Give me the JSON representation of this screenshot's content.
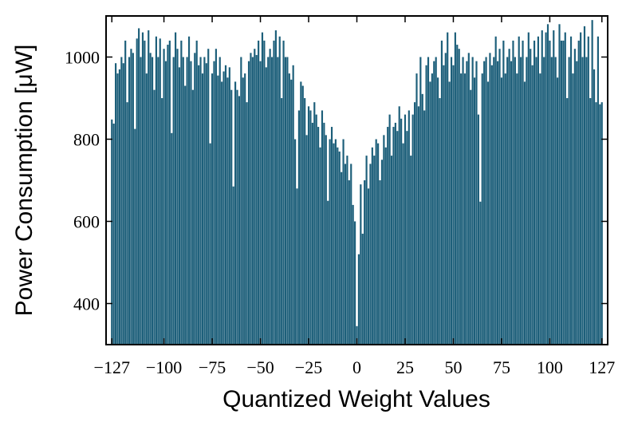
{
  "chart_data": {
    "type": "bar",
    "xlabel": "Quantized Weight Values",
    "ylabel": "Power Consumption [μW]",
    "color": "#1d5f7a",
    "xlim": [
      -130,
      130
    ],
    "ylim": [
      300,
      1100
    ],
    "xticks": [
      {
        "value": -127,
        "label": "−127"
      },
      {
        "value": -100,
        "label": "−100"
      },
      {
        "value": -75,
        "label": "−75"
      },
      {
        "value": -50,
        "label": "−50"
      },
      {
        "value": -25,
        "label": "−25"
      },
      0,
      25,
      50,
      75,
      100,
      127
    ],
    "yticks": [
      400,
      600,
      800,
      1000
    ],
    "x": [
      -127,
      -126,
      -125,
      -124,
      -123,
      -122,
      -121,
      -120,
      -119,
      -118,
      -117,
      -116,
      -115,
      -114,
      -113,
      -112,
      -111,
      -110,
      -109,
      -108,
      -107,
      -106,
      -105,
      -104,
      -103,
      -102,
      -101,
      -100,
      -99,
      -98,
      -97,
      -96,
      -95,
      -94,
      -93,
      -92,
      -91,
      -90,
      -89,
      -88,
      -87,
      -86,
      -85,
      -84,
      -83,
      -82,
      -81,
      -80,
      -79,
      -78,
      -77,
      -76,
      -75,
      -74,
      -73,
      -72,
      -71,
      -70,
      -69,
      -68,
      -67,
      -66,
      -65,
      -64,
      -63,
      -62,
      -61,
      -60,
      -59,
      -58,
      -57,
      -56,
      -55,
      -54,
      -53,
      -52,
      -51,
      -50,
      -49,
      -48,
      -47,
      -46,
      -45,
      -44,
      -43,
      -42,
      -41,
      -40,
      -39,
      -38,
      -37,
      -36,
      -35,
      -34,
      -33,
      -32,
      -31,
      -30,
      -29,
      -28,
      -27,
      -26,
      -25,
      -24,
      -23,
      -22,
      -21,
      -20,
      -19,
      -18,
      -17,
      -16,
      -15,
      -14,
      -13,
      -12,
      -11,
      -10,
      -9,
      -8,
      -7,
      -6,
      -5,
      -4,
      -3,
      -2,
      -1,
      0,
      1,
      2,
      3,
      4,
      5,
      6,
      7,
      8,
      9,
      10,
      11,
      12,
      13,
      14,
      15,
      16,
      17,
      18,
      19,
      20,
      21,
      22,
      23,
      24,
      25,
      26,
      27,
      28,
      29,
      30,
      31,
      32,
      33,
      34,
      35,
      36,
      37,
      38,
      39,
      40,
      41,
      42,
      43,
      44,
      45,
      46,
      47,
      48,
      49,
      50,
      51,
      52,
      53,
      54,
      55,
      56,
      57,
      58,
      59,
      60,
      61,
      62,
      63,
      64,
      65,
      66,
      67,
      68,
      69,
      70,
      71,
      72,
      73,
      74,
      75,
      76,
      77,
      78,
      79,
      80,
      81,
      82,
      83,
      84,
      85,
      86,
      87,
      88,
      89,
      90,
      91,
      92,
      93,
      94,
      95,
      96,
      97,
      98,
      99,
      100,
      101,
      102,
      103,
      104,
      105,
      106,
      107,
      108,
      109,
      110,
      111,
      112,
      113,
      114,
      115,
      116,
      117,
      118,
      119,
      120,
      121,
      122,
      123,
      124,
      125,
      126,
      127
    ],
    "values": [
      848,
      838,
      985,
      960,
      970,
      1000,
      985,
      1040,
      890,
      1000,
      1020,
      1010,
      825,
      1045,
      1070,
      1000,
      1060,
      1040,
      960,
      1065,
      1010,
      1000,
      920,
      1050,
      1000,
      1045,
      900,
      1020,
      990,
      1030,
      1040,
      815,
      1000,
      1060,
      1020,
      975,
      1040,
      1000,
      930,
      1000,
      1050,
      990,
      920,
      1010,
      1040,
      980,
      1000,
      960,
      1000,
      985,
      1020,
      790,
      960,
      990,
      1020,
      955,
      1000,
      940,
      965,
      980,
      950,
      975,
      920,
      685,
      940,
      920,
      905,
      1000,
      950,
      960,
      890,
      990,
      1010,
      1000,
      1020,
      1005,
      1040,
      990,
      1060,
      1040,
      975,
      1000,
      1020,
      1000,
      1040,
      1065,
      1000,
      1050,
      900,
      1040,
      1000,
      1000,
      960,
      945,
      980,
      800,
      680,
      870,
      940,
      930,
      900,
      810,
      880,
      870,
      840,
      890,
      860,
      830,
      780,
      870,
      840,
      810,
      650,
      800,
      830,
      790,
      800,
      780,
      770,
      720,
      800,
      740,
      760,
      700,
      740,
      640,
      600,
      345,
      520,
      690,
      570,
      700,
      760,
      680,
      740,
      780,
      760,
      800,
      790,
      700,
      750,
      810,
      780,
      830,
      860,
      760,
      830,
      840,
      820,
      880,
      850,
      790,
      860,
      820,
      870,
      760,
      860,
      890,
      960,
      880,
      1000,
      910,
      870,
      980,
      1000,
      940,
      960,
      990,
      1000,
      950,
      900,
      1040,
      980,
      1010,
      1060,
      940,
      1000,
      980,
      1060,
      1030,
      1020,
      960,
      1000,
      960,
      990,
      1010,
      920,
      1000,
      950,
      990,
      860,
      648,
      960,
      990,
      1000,
      940,
      1010,
      980,
      1000,
      1050,
      990,
      1020,
      950,
      1040,
      960,
      1000,
      1020,
      990,
      1040,
      1000,
      960,
      1050,
      1000,
      1040,
      940,
      1000,
      1060,
      1020,
      980,
      1040,
      1000,
      1050,
      960,
      1065,
      1000,
      1060,
      1080,
      1040,
      1000,
      1065,
      1000,
      950,
      1080,
      1040,
      1040,
      1060,
      900,
      1000,
      1050,
      960,
      1020,
      990,
      1040,
      1060,
      1000,
      1075,
      1000,
      1050,
      900,
      1090,
      970,
      890,
      1050,
      885,
      890
    ]
  }
}
